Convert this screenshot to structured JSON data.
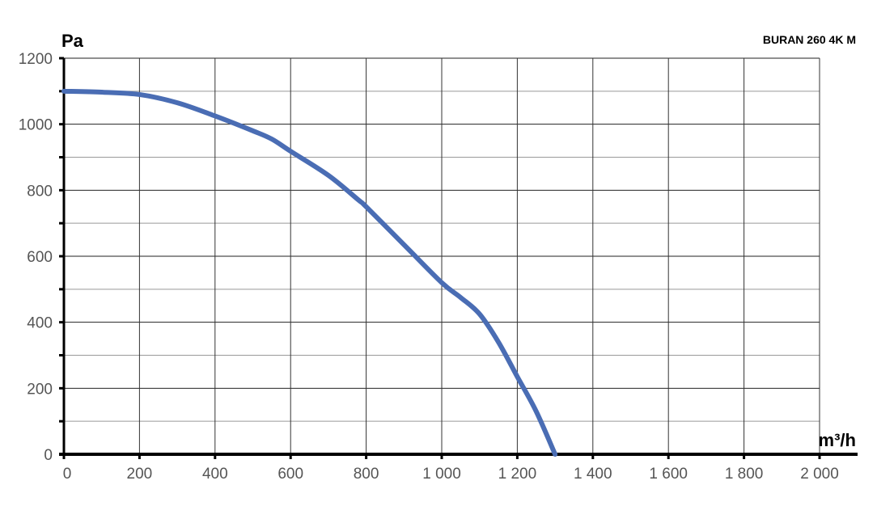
{
  "chart_data": {
    "type": "line",
    "title": "BURAN 260 4K M",
    "xlabel": "m³/h",
    "ylabel": "Pa",
    "xlim": [
      0,
      2000
    ],
    "ylim": [
      0,
      1200
    ],
    "x_ticks": [
      0,
      200,
      400,
      600,
      800,
      1000,
      1200,
      1400,
      1600,
      1800,
      2000
    ],
    "x_tick_labels": [
      "0",
      "200",
      "400",
      "600",
      "800",
      "1 000",
      "1 200",
      "1 400",
      "1 600",
      "1 800",
      "2 000"
    ],
    "y_ticks": [
      0,
      200,
      400,
      600,
      800,
      1000,
      1200
    ],
    "y_tick_labels": [
      "0",
      "200",
      "400",
      "600",
      "800",
      "1000",
      "1200"
    ],
    "grid": true,
    "series": [
      {
        "color": "#4a6db4",
        "x": [
          0,
          100,
          200,
          300,
          400,
          500,
          550,
          600,
          700,
          780,
          800,
          900,
          1000,
          1050,
          1100,
          1150,
          1200,
          1250,
          1300
        ],
        "y": [
          1100,
          1097,
          1090,
          1065,
          1025,
          980,
          955,
          918,
          845,
          770,
          750,
          635,
          520,
          475,
          425,
          340,
          235,
          130,
          0
        ]
      }
    ]
  }
}
